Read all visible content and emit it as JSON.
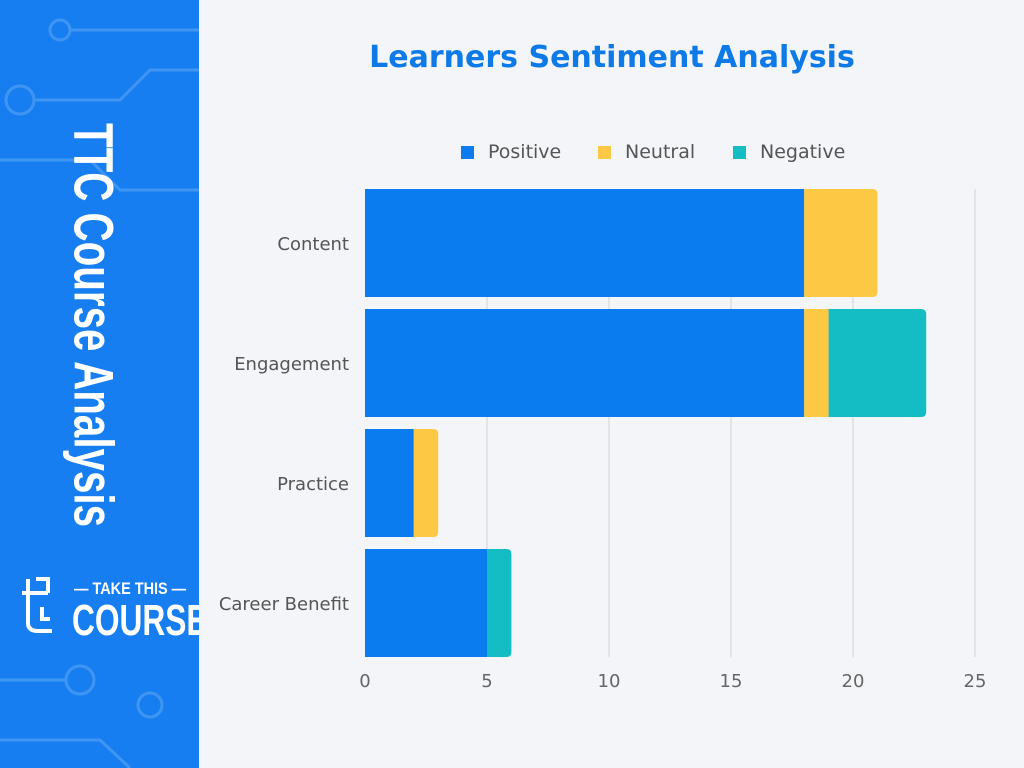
{
  "sidebar": {
    "title": "TTC Course Analysis",
    "logo": {
      "line1": "TAKE THIS",
      "line2": "COURSE"
    }
  },
  "colors": {
    "sidebar": "#167ef0",
    "positive": "#0a7cf0",
    "neutral": "#fdc843",
    "negative": "#14bcc4",
    "title": "#0d7ae8"
  },
  "chart_data": {
    "type": "bar",
    "orientation": "horizontal",
    "stacked": true,
    "title": "Learners Sentiment Analysis",
    "categories": [
      "Content",
      "Engagement",
      "Practice",
      "Career Benefit"
    ],
    "series": [
      {
        "name": "Positive",
        "values": [
          18,
          18,
          2,
          5
        ]
      },
      {
        "name": "Neutral",
        "values": [
          3,
          1,
          1,
          0
        ]
      },
      {
        "name": "Negative",
        "values": [
          0,
          4,
          0,
          1
        ]
      }
    ],
    "xlim": [
      0,
      25
    ],
    "xticks": [
      "0",
      "5",
      "10",
      "15",
      "20",
      "25"
    ],
    "grid": "vertical",
    "legend": "top"
  }
}
